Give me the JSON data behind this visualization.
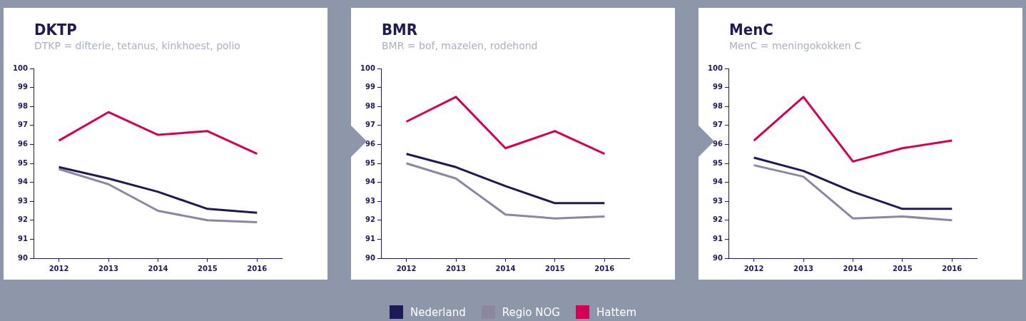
{
  "chart_data": [
    {
      "type": "line",
      "title": "DKTP",
      "subtitle": "DTKP = difterie, tetanus, kinkhoest, polio",
      "categories": [
        "2012",
        "2013",
        "2014",
        "2015",
        "2016"
      ],
      "ylim": [
        90,
        100
      ],
      "yticks": [
        90,
        91,
        92,
        93,
        94,
        95,
        96,
        97,
        98,
        99,
        100
      ],
      "grid": false,
      "legend": "bottom",
      "marker": "none",
      "line_style": "solid",
      "series": [
        {
          "name": "Nederland",
          "color": "#1e1a55",
          "values": [
            94.8,
            94.2,
            93.5,
            92.6,
            92.4
          ]
        },
        {
          "name": "Regio NOG",
          "color": "#8b87a0",
          "values": [
            94.7,
            93.9,
            92.5,
            92.0,
            91.9
          ]
        },
        {
          "name": "Hattem",
          "color": "#d40055",
          "values": [
            96.2,
            97.7,
            96.5,
            96.7,
            95.5
          ]
        }
      ]
    },
    {
      "type": "line",
      "title": "BMR",
      "subtitle": "BMR = bof, mazelen, rodehond",
      "categories": [
        "2012",
        "2013",
        "2014",
        "2015",
        "2016"
      ],
      "ylim": [
        90,
        100
      ],
      "yticks": [
        90,
        91,
        92,
        93,
        94,
        95,
        96,
        97,
        98,
        99,
        100
      ],
      "grid": false,
      "legend": "bottom",
      "marker": "none",
      "line_style": "solid",
      "series": [
        {
          "name": "Nederland",
          "color": "#1e1a55",
          "values": [
            95.5,
            94.8,
            93.8,
            92.9,
            92.9
          ]
        },
        {
          "name": "Regio NOG",
          "color": "#8b87a0",
          "values": [
            95.0,
            94.2,
            92.3,
            92.1,
            92.2
          ]
        },
        {
          "name": "Hattem",
          "color": "#d40055",
          "values": [
            97.2,
            98.5,
            95.8,
            96.7,
            95.5
          ]
        }
      ]
    },
    {
      "type": "line",
      "title": "MenC",
      "subtitle": "MenC = meningokokken C",
      "categories": [
        "2012",
        "2013",
        "2014",
        "2015",
        "2016"
      ],
      "ylim": [
        90,
        100
      ],
      "yticks": [
        90,
        91,
        92,
        93,
        94,
        95,
        96,
        97,
        98,
        99,
        100
      ],
      "grid": false,
      "legend": "bottom",
      "marker": "none",
      "line_style": "solid",
      "series": [
        {
          "name": "Nederland",
          "color": "#1e1a55",
          "values": [
            95.3,
            94.6,
            93.5,
            92.6,
            92.6
          ]
        },
        {
          "name": "Regio NOG",
          "color": "#8b87a0",
          "values": [
            94.9,
            94.3,
            92.1,
            92.2,
            92.0
          ]
        },
        {
          "name": "Hattem",
          "color": "#d40055",
          "values": [
            96.2,
            98.5,
            95.1,
            95.8,
            96.2
          ]
        }
      ]
    }
  ]
}
